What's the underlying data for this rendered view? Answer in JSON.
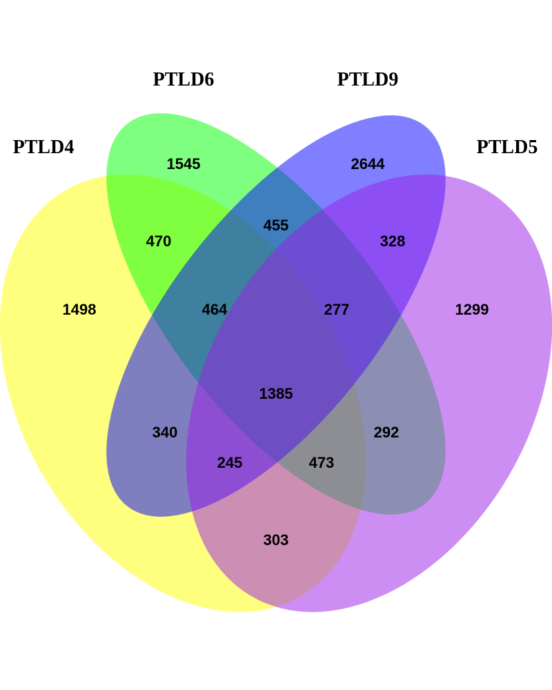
{
  "sets": [
    {
      "key": "A",
      "label": "PTLD4",
      "color": "#ffff00"
    },
    {
      "key": "B",
      "label": "PTLD6",
      "color": "#00ff00"
    },
    {
      "key": "C",
      "label": "PTLD9",
      "color": "#0000ff"
    },
    {
      "key": "D",
      "label": "PTLD5",
      "color": "#9b1de8"
    }
  ],
  "regions": {
    "A_only": "1498",
    "B_only": "1545",
    "C_only": "2644",
    "D_only": "1299",
    "AB": "470",
    "BC": "455",
    "CD": "328",
    "ABC": "464",
    "BCD": "277",
    "AC": "340",
    "ACD": "245",
    "ABCD": "1385",
    "ABD": "473",
    "BD": "292",
    "AD": "303"
  }
}
